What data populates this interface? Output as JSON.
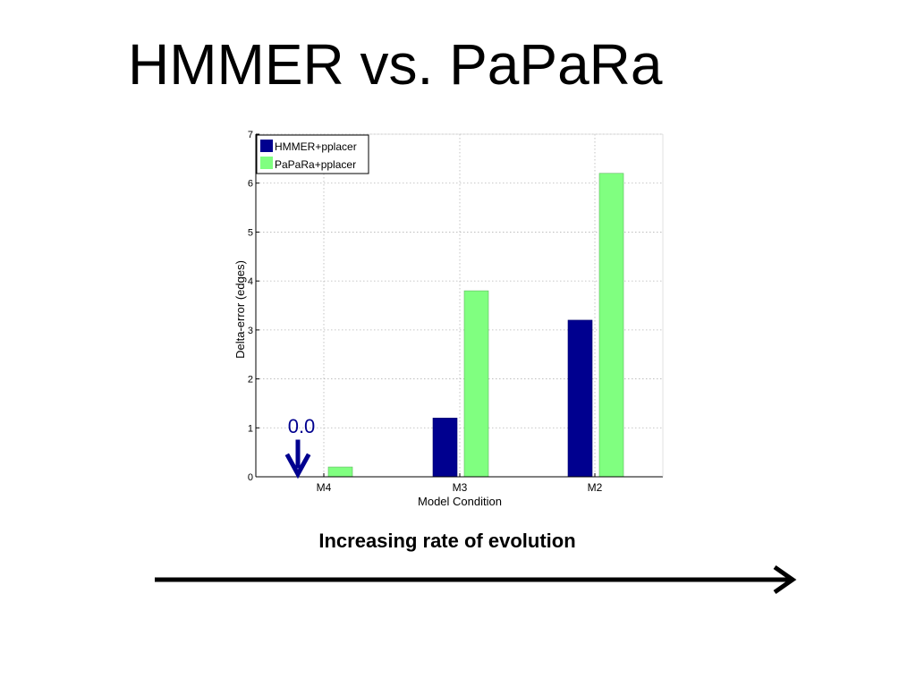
{
  "slide": {
    "title": "HMMER vs. PaPaRa",
    "caption": "Increasing rate of evolution"
  },
  "chart_data": {
    "type": "bar",
    "categories": [
      "M4",
      "M3",
      "M2"
    ],
    "series": [
      {
        "name": "HMMER+pplacer",
        "values": [
          0.0,
          1.2,
          3.2
        ],
        "color": "#00008f"
      },
      {
        "name": "PaPaRa+pplacer",
        "values": [
          0.2,
          3.8,
          6.2
        ],
        "color": "#80ff80"
      }
    ],
    "xlabel": "Model Condition",
    "ylabel": "Delta-error (edges)",
    "ylim": [
      0,
      7
    ],
    "yticks": [
      0,
      1,
      2,
      3,
      4,
      5,
      6,
      7
    ],
    "grid": true,
    "legend_position": "top-left",
    "annotation": {
      "text": "0.0",
      "category": "M4",
      "color": "#00008f"
    }
  }
}
